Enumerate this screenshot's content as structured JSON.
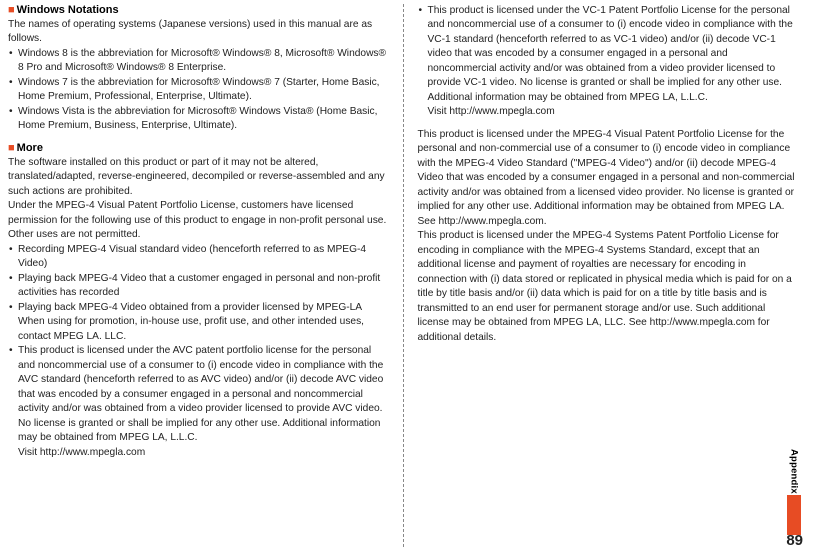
{
  "left": {
    "section1": {
      "title": "Windows Notations",
      "intro": "The names of operating systems (Japanese versions) used in this manual are as follows.",
      "items": [
        "Windows 8 is the abbreviation for Microsoft® Windows® 8, Microsoft® Windows® 8 Pro and Microsoft® Windows® 8 Enterprise.",
        "Windows 7 is the abbreviation for Microsoft® Windows® 7 (Starter, Home Basic, Home Premium, Professional, Enterprise, Ultimate).",
        "Windows Vista is the abbreviation for Microsoft® Windows Vista® (Home Basic, Home Premium, Business, Enterprise, Ultimate)."
      ]
    },
    "section2": {
      "title": "More",
      "intro1": "The software installed on this product or part of it may not be altered, translated/adapted, reverse-engineered, decompiled or reverse-assembled and any such actions are prohibited.",
      "intro2": "Under the MPEG-4 Visual Patent Portfolio License, customers have licensed permission for the following use of this product to engage in non-profit personal use. Other uses are not permitted.",
      "items": [
        "Recording MPEG-4 Visual standard video (henceforth referred to as MPEG-4 Video)",
        "Playing back MPEG-4 Video that a customer engaged in personal and non-profit activities has recorded",
        "Playing back MPEG-4 Video obtained from a provider licensed by MPEG-LA When using for promotion, in-house use, profit use, and other intended uses, contact MPEG LA. LLC.",
        "This product is licensed under the AVC patent portfolio license for the personal and noncommercial use of a consumer to (i) encode video in compliance with the AVC standard (henceforth referred to as AVC video) and/or (ii) decode AVC video that was encoded by a consumer engaged in a personal and noncommercial activity and/or was obtained from a video provider licensed to provide AVC video. No license is granted or shall be implied for any other use. Additional information may be obtained from MPEG LA, L.L.C.",
        "Visit http://www.mpegla.com"
      ]
    }
  },
  "right": {
    "items": [
      "This product is licensed under the VC-1 Patent Portfolio License for the personal and noncommercial use of a consumer to (i) encode video in compliance with the VC-1 standard (henceforth referred to as VC-1 video) and/or (ii) decode VC-1 video that was encoded by a consumer engaged in a personal and noncommercial activity and/or was obtained from a video provider licensed to provide VC-1 video. No license is granted or shall be implied for any other use. Additional information may be obtained from MPEG LA, L.L.C.",
      "Visit http://www.mpegla.com"
    ],
    "para1": "This product is licensed under the MPEG-4 Visual Patent Portfolio License for the personal and non-commercial use of a consumer to (i) encode video in compliance with the MPEG-4 Video Standard (\"MPEG-4 Video\") and/or (ii) decode MPEG-4 Video that was encoded by a consumer engaged in a personal and non-commercial activity and/or was obtained from a licensed video provider. No license is granted or implied for any other use. Additional information may be obtained from MPEG LA. See http://www.mpegla.com.",
    "para2": "This product is licensed under the MPEG-4 Systems Patent Portfolio License for encoding in compliance with the MPEG-4 Systems Standard, except that an additional license and payment of royalties are necessary for encoding in connection with (i) data stored or replicated in physical media which is paid for on a title by title basis and/or (ii) data which is paid for on a title by title basis and is transmitted to an end user for permanent storage and/or use. Such additional license may be obtained from MPEG LA, LLC. See http://www.mpegla.com for additional details."
  },
  "tab": {
    "label": "Appendix"
  },
  "pagenum": "89"
}
